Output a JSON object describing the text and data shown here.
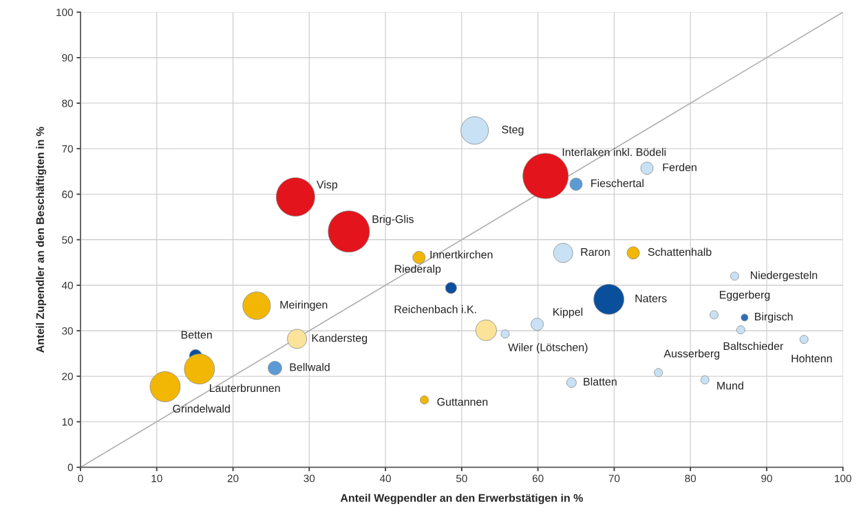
{
  "chart_data": {
    "type": "bubble",
    "xlabel": "Anteil Wegpendler an den Erwerbstätigen in %",
    "ylabel": "Anteil Zupendler an den Beschäftigten in %",
    "series": [
      {
        "x": [
          51.7,
          61.0,
          74.3,
          65.0,
          28.2,
          35.2,
          44.4,
          63.3,
          72.5,
          85.8,
          48.6,
          69.3,
          23.1,
          83.1,
          87.1,
          59.9,
          86.6,
          94.9,
          53.2,
          55.7,
          28.4,
          15.1,
          15.6,
          25.5,
          11.1,
          75.8,
          81.9,
          64.4,
          45.1
        ],
        "values": [
          74.0,
          64.0,
          65.7,
          62.2,
          59.4,
          51.8,
          46.1,
          47.1,
          47.1,
          42.0,
          39.4,
          36.9,
          35.5,
          33.5,
          32.9,
          31.4,
          30.2,
          28.1,
          30.1,
          29.3,
          28.2,
          24.5,
          21.6,
          21.8,
          17.7,
          20.8,
          19.2,
          18.6,
          14.8
        ],
        "sizes": [
          0.37,
          1,
          0.074,
          0.074,
          0.72,
          0.83,
          0.074,
          0.18,
          0.074,
          0.033,
          0.06,
          0.44,
          0.37,
          0.033,
          0.023,
          0.074,
          0.033,
          0.033,
          0.21,
          0.033,
          0.18,
          0.074,
          0.44,
          0.09,
          0.44,
          0.033,
          0.033,
          0.045,
          0.033
        ],
        "colors": [
          "#c8e1f5",
          "#e3141b",
          "#c8e1f5",
          "#5b9bd5",
          "#e3141b",
          "#e3141b",
          "#f2b705",
          "#c8e1f5",
          "#f2b705",
          "#c8e1f5",
          "#0a4f9c",
          "#0a4f9c",
          "#f2b705",
          "#c8e1f5",
          "#2f6db5",
          "#c8e1f5",
          "#c8e1f5",
          "#c8e1f5",
          "#fbe39a",
          "#c8e1f5",
          "#fbe39a",
          "#0a4f9c",
          "#f2b705",
          "#5b9bd5",
          "#f2b705",
          "#c8e1f5",
          "#c8e1f5",
          "#c8e1f5",
          "#f2b705"
        ]
      },
      {
        "type": "line",
        "x": [
          0,
          100
        ],
        "values": [
          0,
          100
        ],
        "color": "#b0b0b0"
      }
    ],
    "annotations": [
      {
        "text": "Steg",
        "x": 51.7,
        "y": 74.0
      },
      {
        "text": "Interlaken inkl. Bödeli",
        "x": 61.0,
        "y": 64.0
      },
      {
        "text": "Ferden",
        "x": 74.3,
        "y": 65.7
      },
      {
        "text": "Fieschertal",
        "x": 65.0,
        "y": 62.2
      },
      {
        "text": "Visp",
        "x": 28.2,
        "y": 59.4
      },
      {
        "text": "Brig-Glis",
        "x": 35.2,
        "y": 51.8
      },
      {
        "text": "Innertkirchen",
        "x": 44.4,
        "y": 46.1
      },
      {
        "text": "Raron",
        "x": 63.3,
        "y": 47.1
      },
      {
        "text": "Schattenhalb",
        "x": 72.5,
        "y": 47.1
      },
      {
        "text": "Niedergesteln",
        "x": 85.8,
        "y": 42.0
      },
      {
        "text": "Riederalp",
        "x": 48.6,
        "y": 39.4
      },
      {
        "text": "Naters",
        "x": 69.3,
        "y": 36.9
      },
      {
        "text": "Meiringen",
        "x": 23.1,
        "y": 35.5
      },
      {
        "text": "Eggerberg",
        "x": 83.1,
        "y": 33.5
      },
      {
        "text": "Birgisch",
        "x": 87.1,
        "y": 32.9
      },
      {
        "text": "Kippel",
        "x": 59.9,
        "y": 31.4
      },
      {
        "text": "Baltschieder",
        "x": 86.6,
        "y": 30.2
      },
      {
        "text": "Hohtenn",
        "x": 94.9,
        "y": 28.1
      },
      {
        "text": "Reichenbach i.K.",
        "x": 53.2,
        "y": 30.1
      },
      {
        "text": "Wiler (Lötschen)",
        "x": 55.7,
        "y": 29.3
      },
      {
        "text": "Kandersteg",
        "x": 28.4,
        "y": 28.2
      },
      {
        "text": "Betten",
        "x": 15.1,
        "y": 24.5
      },
      {
        "text": "Lauterbrunnen",
        "x": 15.6,
        "y": 21.6
      },
      {
        "text": "Bellwald",
        "x": 25.5,
        "y": 21.8
      },
      {
        "text": "Grindelwald",
        "x": 11.1,
        "y": 17.7
      },
      {
        "text": "Ausserberg",
        "x": 75.8,
        "y": 20.8
      },
      {
        "text": "Mund",
        "x": 81.9,
        "y": 19.2
      },
      {
        "text": "Blatten",
        "x": 64.4,
        "y": 18.6
      },
      {
        "text": "Guttannen",
        "x": 45.1,
        "y": 14.8
      }
    ],
    "xlim": [
      0,
      100
    ],
    "ylim": [
      0,
      100
    ],
    "xticks": [
      0,
      10,
      20,
      30,
      40,
      50,
      60,
      70,
      80,
      90,
      100
    ],
    "yticks": [
      0,
      10,
      20,
      30,
      40,
      50,
      60,
      70,
      80,
      90,
      100
    ],
    "grid": true,
    "legend": false
  }
}
